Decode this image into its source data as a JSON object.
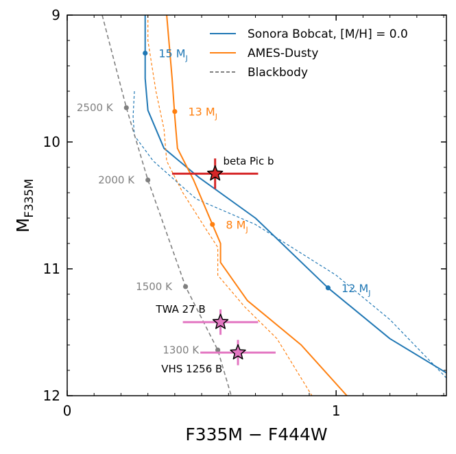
{
  "chart_data": {
    "type": "line",
    "xlabel": "F335M − F444W",
    "ylabel_main": "M",
    "ylabel_sub": "F335M",
    "xlim": [
      0,
      1.41
    ],
    "ylim": [
      12,
      9
    ],
    "xticks": [
      0,
      1
    ],
    "xtick_labels": [
      "0",
      "1"
    ],
    "yticks": [
      9,
      10,
      11,
      12
    ],
    "ytick_labels": [
      "9",
      "10",
      "11",
      "12"
    ],
    "legend": {
      "position": "top-right",
      "entries": [
        {
          "label": "Sonora Bobcat, [M/H] = 0.0",
          "color": "#1f77b4",
          "style": "solid"
        },
        {
          "label": "AMES-Dusty",
          "color": "#ff7f0e",
          "style": "solid"
        },
        {
          "label": "Blackbody",
          "color": "#7f7f7f",
          "style": "dashed"
        }
      ]
    },
    "series": [
      {
        "name": "Sonora Bobcat solid",
        "color": "#1f77b4",
        "dashed": false,
        "width": 2,
        "points": [
          [
            0.29,
            9.0
          ],
          [
            0.29,
            9.3
          ],
          [
            0.29,
            9.5
          ],
          [
            0.3,
            9.75
          ],
          [
            0.36,
            10.05
          ],
          [
            0.49,
            10.28
          ],
          [
            0.7,
            10.6
          ],
          [
            0.97,
            11.15
          ],
          [
            1.2,
            11.55
          ],
          [
            1.41,
            11.82
          ]
        ]
      },
      {
        "name": "Sonora Bobcat dashed",
        "color": "#1f77b4",
        "dashed": true,
        "width": 1.2,
        "points": [
          [
            0.25,
            9.6
          ],
          [
            0.245,
            9.8
          ],
          [
            0.25,
            9.95
          ],
          [
            0.32,
            10.15
          ],
          [
            0.48,
            10.45
          ],
          [
            0.7,
            10.65
          ],
          [
            1.0,
            11.05
          ],
          [
            1.2,
            11.4
          ],
          [
            1.36,
            11.75
          ],
          [
            1.41,
            11.86
          ]
        ]
      },
      {
        "name": "AMES-Dusty solid",
        "color": "#ff7f0e",
        "dashed": false,
        "width": 2,
        "points": [
          [
            0.37,
            9.0
          ],
          [
            0.39,
            9.5
          ],
          [
            0.4,
            9.8
          ],
          [
            0.41,
            10.05
          ],
          [
            0.47,
            10.3
          ],
          [
            0.54,
            10.65
          ],
          [
            0.57,
            10.8
          ],
          [
            0.57,
            10.95
          ],
          [
            0.67,
            11.25
          ],
          [
            0.87,
            11.6
          ],
          [
            1.04,
            12.0
          ]
        ]
      },
      {
        "name": "AMES-Dusty dashed",
        "color": "#ff7f0e",
        "dashed": true,
        "width": 1.2,
        "points": [
          [
            0.3,
            9.0
          ],
          [
            0.3,
            9.2
          ],
          [
            0.33,
            9.6
          ],
          [
            0.36,
            9.9
          ],
          [
            0.37,
            10.15
          ],
          [
            0.43,
            10.4
          ],
          [
            0.52,
            10.7
          ],
          [
            0.56,
            10.83
          ],
          [
            0.56,
            11.05
          ],
          [
            0.66,
            11.3
          ],
          [
            0.78,
            11.55
          ],
          [
            0.91,
            12.0
          ]
        ]
      },
      {
        "name": "Blackbody",
        "color": "#7f7f7f",
        "dashed": true,
        "width": 1.6,
        "points": [
          [
            0.13,
            9.0
          ],
          [
            0.22,
            9.73
          ],
          [
            0.3,
            10.3
          ],
          [
            0.44,
            11.14
          ],
          [
            0.56,
            11.64
          ],
          [
            0.61,
            12.0
          ]
        ]
      }
    ],
    "markers": [
      {
        "x": 0.29,
        "y": 9.3,
        "color": "#1f77b4"
      },
      {
        "x": 0.97,
        "y": 11.15,
        "color": "#1f77b4"
      },
      {
        "x": 0.4,
        "y": 9.76,
        "color": "#ff7f0e"
      },
      {
        "x": 0.54,
        "y": 10.65,
        "color": "#ff7f0e"
      },
      {
        "x": 0.22,
        "y": 9.73,
        "color": "#7f7f7f"
      },
      {
        "x": 0.3,
        "y": 10.3,
        "color": "#7f7f7f"
      },
      {
        "x": 0.44,
        "y": 11.14,
        "color": "#7f7f7f"
      },
      {
        "x": 0.56,
        "y": 11.64,
        "color": "#7f7f7f"
      }
    ],
    "mass_labels": [
      {
        "text": "15 M",
        "sub": "J",
        "x": 0.34,
        "y": 9.3,
        "color": "#1f77b4"
      },
      {
        "text": "13 M",
        "sub": "J",
        "x": 0.45,
        "y": 9.76,
        "color": "#ff7f0e"
      },
      {
        "text": "8 M",
        "sub": "J",
        "x": 0.59,
        "y": 10.65,
        "color": "#ff7f0e"
      },
      {
        "text": "12 M",
        "sub": "J",
        "x": 1.02,
        "y": 11.15,
        "color": "#1f77b4"
      }
    ],
    "temp_labels": [
      {
        "text": "2500 K",
        "x": 0.17,
        "y": 9.73
      },
      {
        "text": "2000 K",
        "x": 0.25,
        "y": 10.3
      },
      {
        "text": "1500 K",
        "x": 0.39,
        "y": 11.14
      },
      {
        "text": "1300 K",
        "x": 0.49,
        "y": 11.64
      }
    ],
    "objects": [
      {
        "name": "beta Pic b",
        "x": 0.55,
        "y": 10.25,
        "xerr": 0.16,
        "yerr": 0.12,
        "color": "#d62728",
        "errcolor": "#d62728",
        "label_x": 0.58,
        "label_y": 10.15
      },
      {
        "name": "TWA 27 B",
        "x": 0.57,
        "y": 11.42,
        "xerr": 0.14,
        "yerr": 0.1,
        "color": "#e377c2",
        "errcolor": "#e377c2",
        "label_x": 0.33,
        "label_y": 11.32
      },
      {
        "name": "VHS 1256 B",
        "x": 0.635,
        "y": 11.66,
        "xerr": 0.14,
        "yerr": 0.1,
        "color": "#e377c2",
        "errcolor": "#e377c2",
        "label_x": 0.35,
        "label_y": 11.79
      }
    ]
  }
}
